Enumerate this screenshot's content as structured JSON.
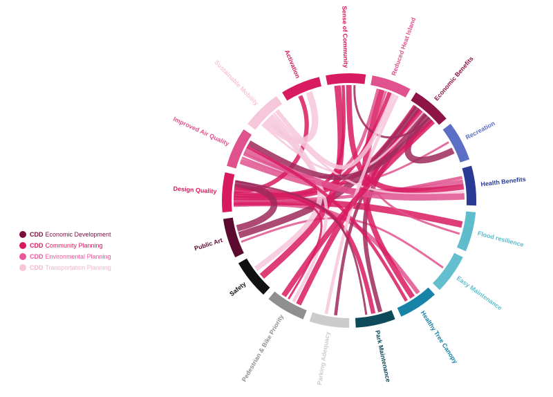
{
  "legend": [
    {
      "prefix": "CDD",
      "label": "Economic Development",
      "color": "#7a0f3e",
      "text_color": "#7a0f3e"
    },
    {
      "prefix": "CDD",
      "label": "Community Planning",
      "color": "#d81b60",
      "text_color": "#d81b60"
    },
    {
      "prefix": "CDD",
      "label": "Environmental Planning",
      "color": "#e9579a",
      "text_color": "#e9579a"
    },
    {
      "prefix": "CDD",
      "label": "Transportation Planning",
      "color": "#f7c6da",
      "text_color": "#f2b6cd"
    }
  ],
  "chart_data": {
    "type": "chord",
    "nodes": [
      {
        "label": "Public Art",
        "color": "#5c0a30"
      },
      {
        "label": "Design Quality",
        "color": "#d81b60"
      },
      {
        "label": "Improved Air Quality",
        "color": "#e0528e"
      },
      {
        "label": "Sustainable Mobility",
        "color": "#f6c7da"
      },
      {
        "label": "Activation",
        "color": "#d81b60"
      },
      {
        "label": "Sense of Community",
        "color": "#d81b60"
      },
      {
        "label": "Reduced Heat Island",
        "color": "#e0528e"
      },
      {
        "label": "Economic Benefits",
        "color": "#8e1448"
      },
      {
        "label": "Recreation",
        "color": "#5b6fc4"
      },
      {
        "label": "Health Benefits",
        "color": "#2a3b96"
      },
      {
        "label": "Flood resilience",
        "color": "#5fbccc"
      },
      {
        "label": "Easy Maintenance",
        "color": "#63bfcd"
      },
      {
        "label": "Healthy Tree Canopy",
        "color": "#1783a6"
      },
      {
        "label": "Park Maintenance",
        "color": "#0e4a5a"
      },
      {
        "label": "Parking Adequacy",
        "color": "#cccccc"
      },
      {
        "label": "Pedestrian & Bike Priority",
        "color": "#8f8f8f"
      },
      {
        "label": "Safety",
        "color": "#111111"
      }
    ],
    "links": [
      {
        "source": "Easy Maintenance",
        "target": "Public Art",
        "color": "#e0528e"
      },
      {
        "source": "Healthy Tree Canopy",
        "target": "Design Quality",
        "color": "#e0528e"
      },
      {
        "source": "Flood resilience",
        "target": "Design Quality",
        "color": "#d81b60"
      },
      {
        "source": "Health Benefits",
        "target": "Design Quality",
        "color": "#e0528e"
      },
      {
        "source": "Health Benefits",
        "target": "Improved Air Quality",
        "color": "#e0528e"
      },
      {
        "source": "Recreation",
        "target": "Improved Air Quality",
        "color": "#e0528e"
      },
      {
        "source": "Economic Benefits",
        "target": "Design Quality",
        "color": "#d81b60"
      },
      {
        "source": "Economic Benefits",
        "target": "Public Art",
        "color": "#9e2a5c"
      },
      {
        "source": "Economic Benefits",
        "target": "Parking Adequacy",
        "color": "#9e2a5c"
      },
      {
        "source": "Economic Benefits",
        "target": "Pedestrian & Bike Priority",
        "color": "#d81b60"
      },
      {
        "source": "Economic Benefits",
        "target": "Sustainable Mobility",
        "color": "#f6c7da"
      },
      {
        "source": "Economic Benefits",
        "target": "Park Maintenance",
        "color": "#9e2a5c"
      },
      {
        "source": "Economic Benefits",
        "target": "Recreation",
        "color": "#9e2a5c"
      },
      {
        "source": "Reduced Heat Island",
        "target": "Improved Air Quality",
        "color": "#e0528e"
      },
      {
        "source": "Reduced Heat Island",
        "target": "Healthy Tree Canopy",
        "color": "#d81b60"
      },
      {
        "source": "Reduced Heat Island",
        "target": "Flood resilience",
        "color": "#e0528e"
      },
      {
        "source": "Reduced Heat Island",
        "target": "Design Quality",
        "color": "#d81b60"
      },
      {
        "source": "Sense of Community",
        "target": "Safety",
        "color": "#d81b60"
      },
      {
        "source": "Sense of Community",
        "target": "Design Quality",
        "color": "#d81b60"
      },
      {
        "source": "Sense of Community",
        "target": "Health Benefits",
        "color": "#d81b60"
      },
      {
        "source": "Sense of Community",
        "target": "Economic Benefits",
        "color": "#9e2a5c"
      },
      {
        "source": "Activation",
        "target": "Design Quality",
        "color": "#d81b60"
      },
      {
        "source": "Activation",
        "target": "Sustainable Mobility",
        "color": "#f6c7da"
      },
      {
        "source": "Sustainable Mobility",
        "target": "Pedestrian & Bike Priority",
        "color": "#f6c7da"
      },
      {
        "source": "Sustainable Mobility",
        "target": "Safety",
        "color": "#f6c7da"
      },
      {
        "source": "Sustainable Mobility",
        "target": "Health Benefits",
        "color": "#f6c7da"
      },
      {
        "source": "Sustainable Mobility",
        "target": "Reduced Heat Island",
        "color": "#f6c7da"
      },
      {
        "source": "Improved Air Quality",
        "target": "Health Benefits",
        "color": "#e0528e"
      },
      {
        "source": "Improved Air Quality",
        "target": "Healthy Tree Canopy",
        "color": "#d81b60"
      },
      {
        "source": "Improved Air Quality",
        "target": "Economic Benefits",
        "color": "#9e2a5c"
      },
      {
        "source": "Design Quality",
        "target": "Pedestrian & Bike Priority",
        "color": "#d81b60"
      },
      {
        "source": "Design Quality",
        "target": "Park Maintenance",
        "color": "#d81b60"
      },
      {
        "source": "Public Art",
        "target": "Design Quality",
        "color": "#9e2a5c"
      },
      {
        "source": "Parking Adequacy",
        "target": "Reduced Heat Island",
        "color": "#f6c7da"
      },
      {
        "source": "Pedestrian & Bike Priority",
        "target": "Economic Benefits",
        "color": "#d81b60"
      },
      {
        "source": "Park Maintenance",
        "target": "Design Quality",
        "color": "#9e2a5c"
      }
    ]
  }
}
